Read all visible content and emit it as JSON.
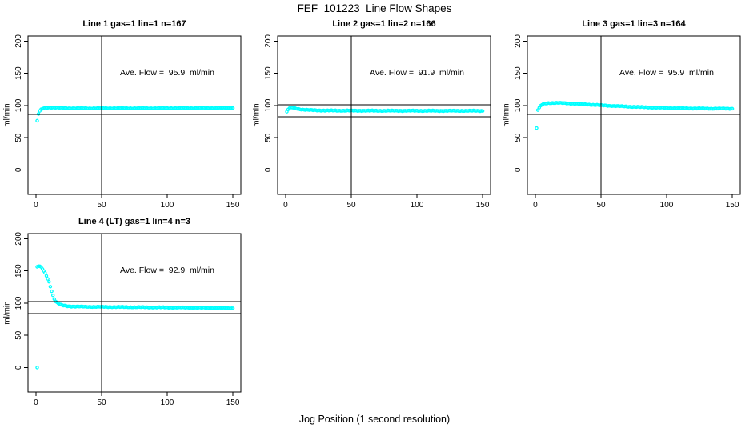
{
  "page": {
    "title": "FEF_101223  Line Flow Shapes",
    "bottom_label": "Jog Position (1 second resolution)"
  },
  "colors": {
    "points": "#00FFFF",
    "axis": "#000000",
    "background": "#FFFFFF",
    "text": "#000000"
  },
  "chart_data": {
    "type": "scatter",
    "title": "FEF_101223  Line Flow Shapes",
    "xlabel": "Jog Position (1 second resolution)",
    "ylabel": "ml/min",
    "marker": "open-circle",
    "grid": false,
    "legend": "none",
    "x_ticks": [
      0,
      50,
      100,
      150
    ],
    "y_ticks": [
      0,
      50,
      100,
      150,
      200
    ],
    "xlim": [
      -6,
      156
    ],
    "ylim": [
      -38,
      208
    ],
    "vline_x": 50,
    "sampling": {
      "x_start": 1,
      "x_end": 150,
      "x_step": 1
    },
    "panels": [
      {
        "title": "Line 1 gas=1 lin=1 n=167",
        "line": 1,
        "gas": 1,
        "lin": 1,
        "n": 167,
        "ave_flow": 95.9,
        "ave_flow_text": "Ave. Flow =  95.9  ml/min",
        "hlines": [
          105.5,
          86.3
        ],
        "outlier_points": [],
        "keypoints": [
          [
            1,
            76
          ],
          [
            2,
            87
          ],
          [
            3,
            91.5
          ],
          [
            4,
            93.5
          ],
          [
            5,
            95
          ],
          [
            6,
            95.8
          ],
          [
            8,
            96.5
          ],
          [
            10,
            96.8
          ],
          [
            14,
            96.8
          ],
          [
            18,
            96.2
          ],
          [
            25,
            95.8
          ],
          [
            40,
            95.7
          ],
          [
            60,
            95.8
          ],
          [
            80,
            95.8
          ],
          [
            100,
            95.9
          ],
          [
            120,
            96
          ],
          [
            140,
            96.1
          ],
          [
            150,
            96.2
          ]
        ]
      },
      {
        "title": "Line 2 gas=1 lin=2 n=166",
        "line": 2,
        "gas": 1,
        "lin": 2,
        "n": 166,
        "ave_flow": 91.9,
        "ave_flow_text": "Ave. Flow =  91.9  ml/min",
        "hlines": [
          101.1,
          82.7
        ],
        "outlier_points": [],
        "keypoints": [
          [
            1,
            90
          ],
          [
            2,
            94
          ],
          [
            3,
            95.8
          ],
          [
            4,
            96.6
          ],
          [
            5,
            96.8
          ],
          [
            6,
            96.4
          ],
          [
            8,
            95.4
          ],
          [
            10,
            94.6
          ],
          [
            12,
            94
          ],
          [
            15,
            93.4
          ],
          [
            20,
            92.8
          ],
          [
            25,
            92.5
          ],
          [
            30,
            92.3
          ],
          [
            40,
            92.1
          ],
          [
            60,
            92
          ],
          [
            80,
            91.9
          ],
          [
            100,
            91.9
          ],
          [
            120,
            91.8
          ],
          [
            150,
            91.8
          ]
        ]
      },
      {
        "title": "Line 3 gas=1 lin=3 n=164",
        "line": 3,
        "gas": 1,
        "lin": 3,
        "n": 164,
        "ave_flow": 95.9,
        "ave_flow_text": "Ave. Flow =  95.9  ml/min",
        "hlines": [
          105.5,
          86.3
        ],
        "outlier_points": [
          [
            1,
            65
          ]
        ],
        "keypoints": [
          [
            2,
            93
          ],
          [
            3,
            96.5
          ],
          [
            4,
            99
          ],
          [
            5,
            101
          ],
          [
            6,
            102.3
          ],
          [
            8,
            103.3
          ],
          [
            10,
            103.8
          ],
          [
            14,
            104
          ],
          [
            18,
            104
          ],
          [
            22,
            103.7
          ],
          [
            26,
            103.3
          ],
          [
            30,
            102.8
          ],
          [
            35,
            102.2
          ],
          [
            40,
            101.6
          ],
          [
            45,
            101
          ],
          [
            50,
            100.4
          ],
          [
            55,
            99.8
          ],
          [
            60,
            99.3
          ],
          [
            65,
            98.8
          ],
          [
            70,
            98.3
          ],
          [
            75,
            97.9
          ],
          [
            80,
            97.5
          ],
          [
            85,
            97.2
          ],
          [
            90,
            96.8
          ],
          [
            95,
            96.5
          ],
          [
            100,
            96.3
          ],
          [
            105,
            96
          ],
          [
            110,
            95.8
          ],
          [
            115,
            95.7
          ],
          [
            120,
            95.5
          ],
          [
            130,
            95.3
          ],
          [
            140,
            95.2
          ],
          [
            150,
            95.2
          ]
        ]
      },
      {
        "title": "Line 4 (LT) gas=1 lin=4 n=3",
        "line": 4,
        "gas": 1,
        "lin": 4,
        "n": 3,
        "ave_flow": 92.9,
        "ave_flow_text": "Ave. Flow =  92.9  ml/min",
        "hlines": [
          102.2,
          83.6
        ],
        "outlier_points": [
          [
            1,
            0
          ]
        ],
        "keypoints": [
          [
            1,
            156
          ],
          [
            2,
            157.5
          ],
          [
            3,
            157
          ],
          [
            4,
            155.5
          ],
          [
            5,
            153
          ],
          [
            6,
            150
          ],
          [
            7,
            146.5
          ],
          [
            8,
            142.5
          ],
          [
            9,
            138
          ],
          [
            10,
            133
          ],
          [
            11,
            126
          ],
          [
            12,
            119
          ],
          [
            13,
            112
          ],
          [
            14,
            106.5
          ],
          [
            15,
            103
          ],
          [
            16,
            101
          ],
          [
            17,
            99.5
          ],
          [
            18,
            98.3
          ],
          [
            19,
            97.4
          ],
          [
            20,
            96.7
          ],
          [
            22,
            95.9
          ],
          [
            25,
            95.2
          ],
          [
            28,
            94.9
          ],
          [
            32,
            94.7
          ],
          [
            36,
            94.5
          ],
          [
            40,
            94.4
          ],
          [
            45,
            94.3
          ],
          [
            50,
            94.2
          ],
          [
            60,
            94
          ],
          [
            70,
            93.8
          ],
          [
            80,
            93.6
          ],
          [
            90,
            93.4
          ],
          [
            100,
            93.2
          ],
          [
            110,
            93
          ],
          [
            120,
            92.8
          ],
          [
            130,
            92.6
          ],
          [
            140,
            92.4
          ],
          [
            150,
            92.2
          ]
        ]
      }
    ]
  }
}
